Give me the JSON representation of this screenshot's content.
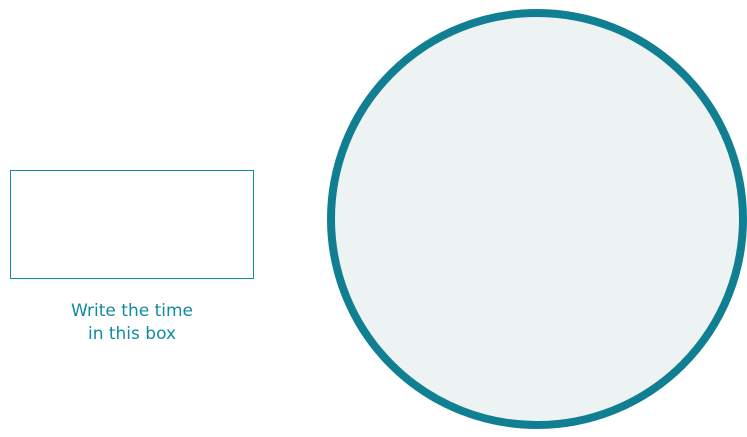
{
  "caption": {
    "line1": "Write the time",
    "line2": "in this box"
  },
  "colors": {
    "accent": "#118ba0",
    "clock_ring": "#117f92",
    "clock_fill": "#edf2f3"
  },
  "icons": {
    "clock_face": "blank-clock-face-icon"
  }
}
